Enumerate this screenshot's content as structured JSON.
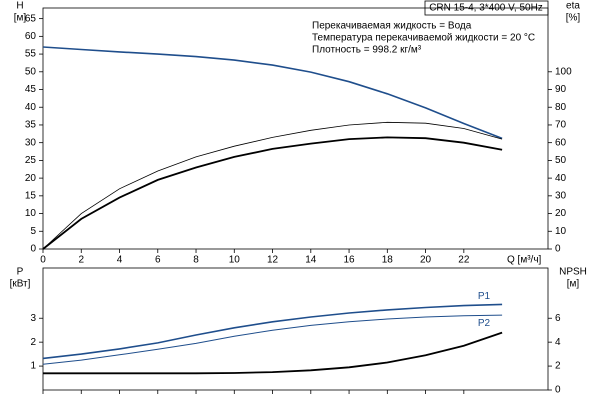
{
  "chart_data": [
    {
      "type": "line",
      "title": "CRN 15-4, 3*400 V, 50Hz",
      "annotations": [
        "Перекачиваемая жидкость = Вода",
        "Температура перекачиваемой жидкости = 20 °C",
        "Плотность = 998.2 кг/м³"
      ],
      "ylabel": "H",
      "yunit": "[м]",
      "y2label": "eta",
      "y2unit": "[%]",
      "xlabel": "Q [м³/ч]",
      "x": [
        0,
        2,
        4,
        6,
        8,
        10,
        12,
        14,
        16,
        18,
        20,
        22,
        24
      ],
      "xlim": [
        0,
        26.4
      ],
      "xticks": [
        0,
        2,
        4,
        6,
        8,
        10,
        12,
        14,
        16,
        18,
        20,
        22
      ],
      "ylim": [
        0,
        68
      ],
      "yticks": [
        0,
        5,
        10,
        15,
        20,
        25,
        30,
        35,
        40,
        45,
        50,
        55,
        60,
        65
      ],
      "y2lim": [
        0,
        136
      ],
      "y2ticks": [
        0,
        10,
        20,
        30,
        40,
        50,
        60,
        70,
        80,
        90,
        100
      ],
      "series": [
        {
          "color": "#1f4e8c",
          "width": 1.6,
          "values": [
            57,
            56.3,
            55.6,
            55,
            54.3,
            53.3,
            51.9,
            49.9,
            47.2,
            43.8,
            39.8,
            35.4,
            31.2
          ]
        },
        {
          "color": "#000000",
          "width": 0.8,
          "axis": "y2",
          "values": [
            0,
            20,
            34,
            44,
            52,
            58,
            63,
            67,
            70,
            71.5,
            71,
            68,
            62
          ]
        },
        {
          "color": "#000000",
          "width": 1.8,
          "axis": "y2",
          "values": [
            0,
            17,
            29,
            39,
            46,
            52,
            56.5,
            59.5,
            62,
            63,
            62.5,
            60,
            56
          ]
        }
      ]
    },
    {
      "type": "line",
      "ylabel": "P",
      "yunit": "[кВт]",
      "y2label": "NPSH",
      "y2unit": "[м]",
      "x": [
        0,
        2,
        4,
        6,
        8,
        10,
        12,
        14,
        16,
        18,
        20,
        22,
        24
      ],
      "xlim": [
        0,
        26.4
      ],
      "xticks": [
        0,
        2,
        4,
        6,
        8,
        10,
        12,
        14,
        16,
        18,
        20,
        22
      ],
      "ylim": [
        0,
        5.1
      ],
      "yticks": [
        1,
        2,
        3
      ],
      "y2lim": [
        0,
        10.2
      ],
      "y2ticks": [
        0,
        2,
        4,
        6
      ],
      "series": [
        {
          "name": "P1",
          "color": "#1f4e8c",
          "width": 1.6,
          "values": [
            1.32,
            1.5,
            1.72,
            1.97,
            2.3,
            2.6,
            2.85,
            3.05,
            3.22,
            3.35,
            3.45,
            3.53,
            3.58
          ]
        },
        {
          "name": "P2",
          "color": "#1f4e8c",
          "width": 1,
          "values": [
            1.08,
            1.25,
            1.47,
            1.7,
            1.95,
            2.25,
            2.5,
            2.7,
            2.85,
            2.97,
            3.05,
            3.1,
            3.13
          ]
        },
        {
          "color": "#000000",
          "width": 1.8,
          "axis": "y2",
          "values": [
            1.4,
            1.4,
            1.4,
            1.4,
            1.4,
            1.42,
            1.5,
            1.65,
            1.9,
            2.3,
            2.9,
            3.7,
            4.8
          ]
        }
      ]
    }
  ]
}
